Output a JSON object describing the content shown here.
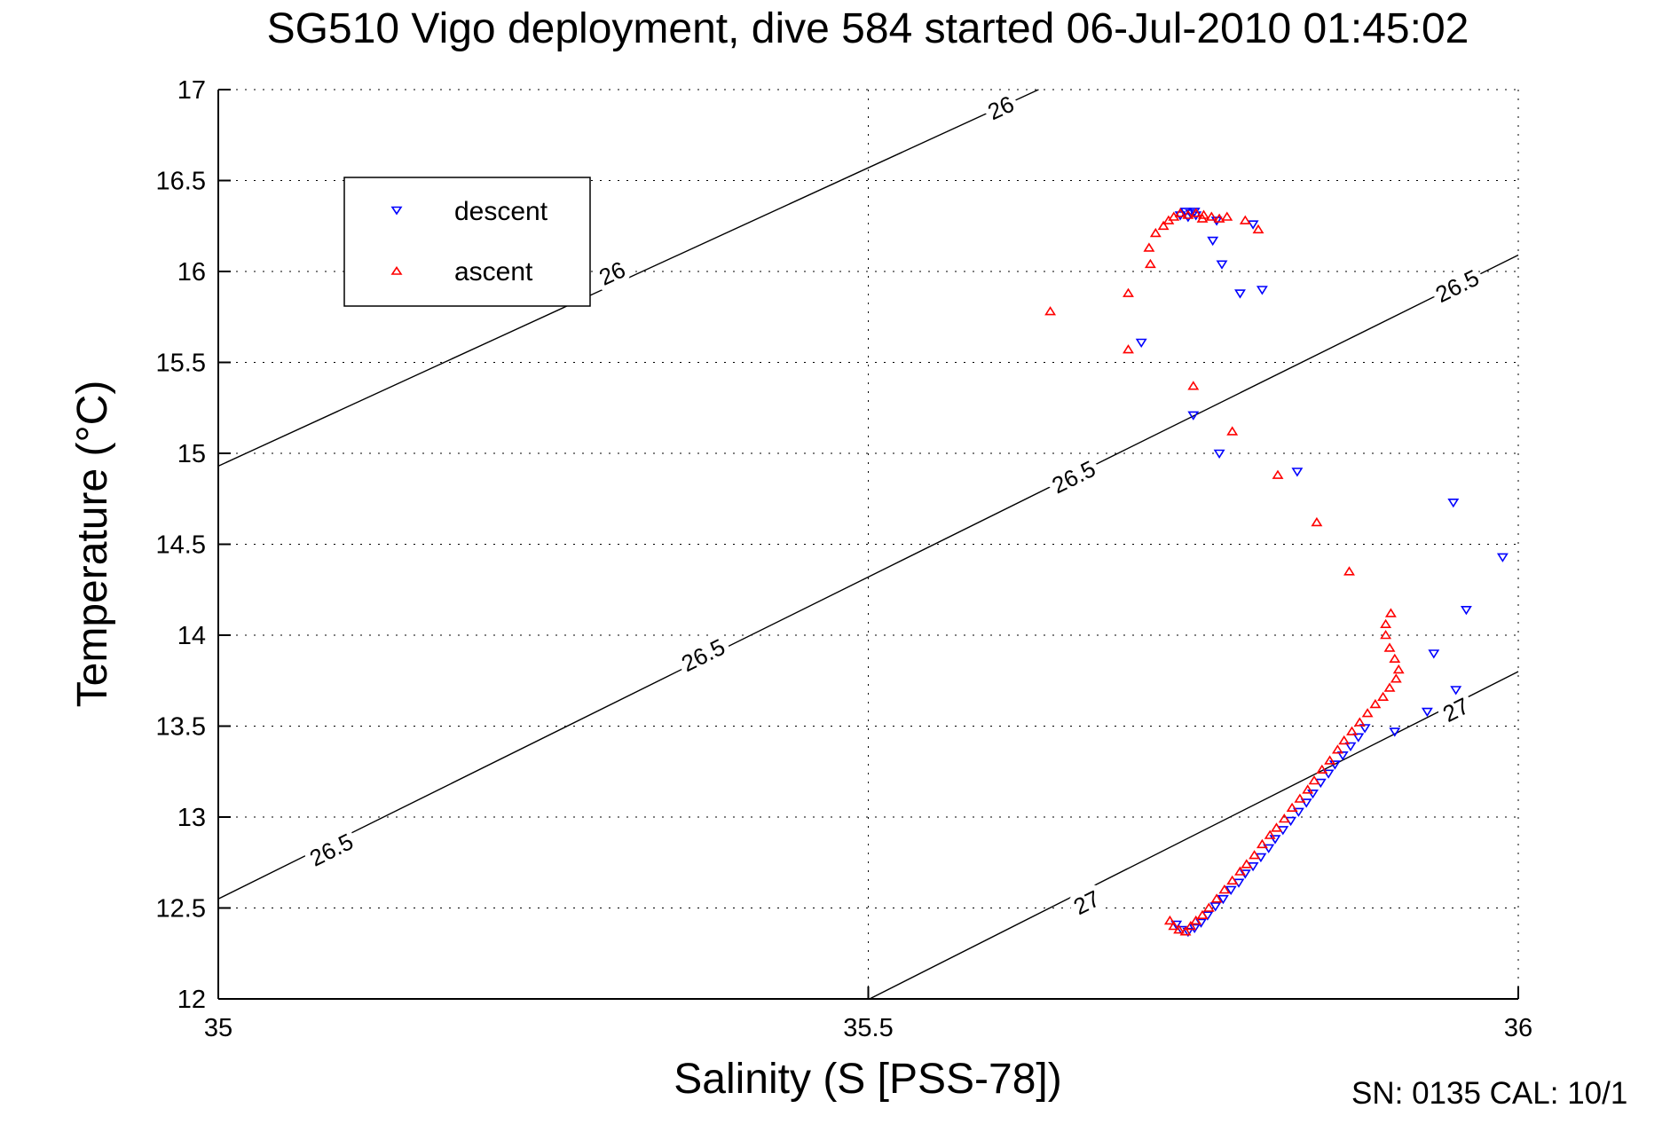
{
  "chart_data": {
    "type": "scatter",
    "title": "SG510 Vigo deployment, dive 584 started 06-Jul-2010 01:45:02",
    "xlabel": "Salinity (S [PSS-78])",
    "ylabel": "Temperature (°C)",
    "annotation": "SN: 0135  CAL: 10/1",
    "xlim": [
      35,
      36
    ],
    "ylim": [
      12,
      17
    ],
    "xticks": [
      35,
      35.5,
      36
    ],
    "xtick_labels": [
      "35",
      "35.5",
      "36"
    ],
    "yticks": [
      12,
      12.5,
      13,
      13.5,
      14,
      14.5,
      15,
      15.5,
      16,
      16.5,
      17
    ],
    "ytick_labels": [
      "12",
      "12.5",
      "13",
      "13.5",
      "14",
      "14.5",
      "15",
      "15.5",
      "16",
      "16.5",
      "17"
    ],
    "grid": true,
    "legend_position": "upper left",
    "series": [
      {
        "name": "descent",
        "marker": "triangle-down",
        "color": "#0000ff",
        "points": [
          [
            35.737,
            12.41
          ],
          [
            35.741,
            12.38
          ],
          [
            35.746,
            12.37
          ],
          [
            35.751,
            12.39
          ],
          [
            35.756,
            12.42
          ],
          [
            35.761,
            12.46
          ],
          [
            35.767,
            12.51
          ],
          [
            35.773,
            12.55
          ],
          [
            35.779,
            12.6
          ],
          [
            35.785,
            12.64
          ],
          [
            35.79,
            12.69
          ],
          [
            35.796,
            12.73
          ],
          [
            35.802,
            12.78
          ],
          [
            35.808,
            12.83
          ],
          [
            35.813,
            12.88
          ],
          [
            35.819,
            12.93
          ],
          [
            35.825,
            12.98
          ],
          [
            35.831,
            13.03
          ],
          [
            35.837,
            13.08
          ],
          [
            35.842,
            13.13
          ],
          [
            35.848,
            13.19
          ],
          [
            35.854,
            13.24
          ],
          [
            35.859,
            13.29
          ],
          [
            35.865,
            13.34
          ],
          [
            35.871,
            13.39
          ],
          [
            35.877,
            13.44
          ],
          [
            35.882,
            13.49
          ],
          [
            35.905,
            13.47
          ],
          [
            35.93,
            13.58
          ],
          [
            35.952,
            13.7
          ],
          [
            35.935,
            13.9
          ],
          [
            35.96,
            14.14
          ],
          [
            35.988,
            14.43
          ],
          [
            35.95,
            14.73
          ],
          [
            35.83,
            14.9
          ],
          [
            35.77,
            15.0
          ],
          [
            35.75,
            15.21
          ],
          [
            35.71,
            15.61
          ],
          [
            35.74,
            16.31
          ],
          [
            35.744,
            16.33
          ],
          [
            35.748,
            16.32
          ],
          [
            35.752,
            16.31
          ],
          [
            35.746,
            16.3
          ],
          [
            35.751,
            16.33
          ],
          [
            35.768,
            16.28
          ],
          [
            35.796,
            16.26
          ],
          [
            35.765,
            16.17
          ],
          [
            35.772,
            16.04
          ],
          [
            35.803,
            15.9
          ],
          [
            35.786,
            15.88
          ]
        ]
      },
      {
        "name": "ascent",
        "marker": "triangle-up",
        "color": "#ff0000",
        "points": [
          [
            35.732,
            12.43
          ],
          [
            35.735,
            12.4
          ],
          [
            35.739,
            12.38
          ],
          [
            35.744,
            12.37
          ],
          [
            35.748,
            12.4
          ],
          [
            35.752,
            12.43
          ],
          [
            35.757,
            12.46
          ],
          [
            35.762,
            12.5
          ],
          [
            35.768,
            12.55
          ],
          [
            35.774,
            12.6
          ],
          [
            35.78,
            12.65
          ],
          [
            35.786,
            12.7
          ],
          [
            35.791,
            12.74
          ],
          [
            35.797,
            12.79
          ],
          [
            35.803,
            12.85
          ],
          [
            35.809,
            12.9
          ],
          [
            35.814,
            12.94
          ],
          [
            35.82,
            12.99
          ],
          [
            35.826,
            13.05
          ],
          [
            35.832,
            13.1
          ],
          [
            35.838,
            13.15
          ],
          [
            35.843,
            13.2
          ],
          [
            35.849,
            13.26
          ],
          [
            35.855,
            13.31
          ],
          [
            35.861,
            13.37
          ],
          [
            35.866,
            13.42
          ],
          [
            35.872,
            13.47
          ],
          [
            35.878,
            13.52
          ],
          [
            35.884,
            13.57
          ],
          [
            35.89,
            13.62
          ],
          [
            35.896,
            13.66
          ],
          [
            35.901,
            13.71
          ],
          [
            35.906,
            13.76
          ],
          [
            35.908,
            13.81
          ],
          [
            35.905,
            13.87
          ],
          [
            35.901,
            13.93
          ],
          [
            35.898,
            14.0
          ],
          [
            35.898,
            14.06
          ],
          [
            35.902,
            14.12
          ],
          [
            35.87,
            14.35
          ],
          [
            35.845,
            14.62
          ],
          [
            35.815,
            14.88
          ],
          [
            35.78,
            15.12
          ],
          [
            35.75,
            15.37
          ],
          [
            35.7,
            15.57
          ],
          [
            35.64,
            15.78
          ],
          [
            35.7,
            15.88
          ],
          [
            35.717,
            16.04
          ],
          [
            35.716,
            16.13
          ],
          [
            35.721,
            16.21
          ],
          [
            35.727,
            16.25
          ],
          [
            35.731,
            16.28
          ],
          [
            35.735,
            16.3
          ],
          [
            35.74,
            16.32
          ],
          [
            35.746,
            16.31
          ],
          [
            35.752,
            16.32
          ],
          [
            35.758,
            16.31
          ],
          [
            35.764,
            16.3
          ],
          [
            35.77,
            16.29
          ],
          [
            35.776,
            16.3
          ],
          [
            35.8,
            16.23
          ],
          [
            35.79,
            16.28
          ],
          [
            35.757,
            16.29
          ]
        ]
      }
    ],
    "contours": {
      "color": "#000000",
      "lines": [
        {
          "level": "26",
          "from": [
            35.0,
            14.93
          ],
          "to": [
            35.631,
            17.0
          ],
          "labels": [
            [
              35.303,
              15.99
            ],
            [
              35.602,
              16.9
            ]
          ]
        },
        {
          "level": "26.5",
          "from": [
            35.0,
            12.55
          ],
          "to": [
            36.0,
            16.09
          ],
          "labels": [
            [
              35.087,
              12.82
            ],
            [
              35.373,
              13.89
            ],
            [
              35.658,
              14.87
            ],
            [
              35.953,
              15.92
            ]
          ]
        },
        {
          "level": "27",
          "from": [
            35.501,
            12.0
          ],
          "to": [
            36.0,
            13.8
          ],
          "labels": [
            [
              35.668,
              12.53
            ],
            [
              35.952,
              13.59
            ]
          ]
        }
      ]
    }
  }
}
